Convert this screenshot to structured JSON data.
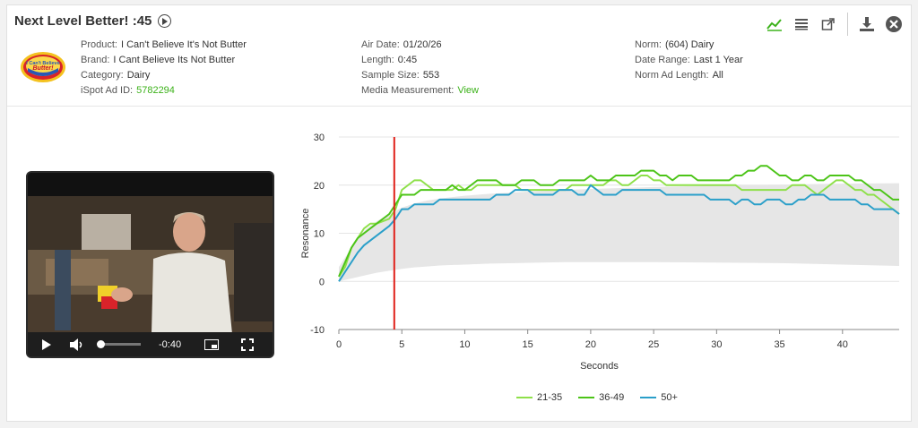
{
  "header": {
    "title": "Next Level Better! :45",
    "col1": [
      {
        "label": "Product:",
        "value": "I Can't Believe It's Not Butter"
      },
      {
        "label": "Brand:",
        "value": "I Cant Believe Its Not Butter"
      },
      {
        "label": "Category:",
        "value": "Dairy"
      },
      {
        "label": "iSpot Ad ID:",
        "value": "5782294"
      }
    ],
    "col2": [
      {
        "label": "Air Date:",
        "value": "01/20/26"
      },
      {
        "label": "Length:",
        "value": "0:45"
      },
      {
        "label": "Sample Size:",
        "value": "553"
      },
      {
        "label": "Media Measurement:",
        "value": "View"
      }
    ],
    "col3": [
      {
        "label": "Norm:",
        "value": "(604) Dairy"
      },
      {
        "label": "Date Range:",
        "value": "Last 1 Year"
      },
      {
        "label": "Norm Ad Length:",
        "value": "All"
      }
    ],
    "logo_text": "I Can't Believe It's Not Butter!"
  },
  "toolbar": {
    "icons": [
      "line-chart-icon",
      "list-icon",
      "external-link-icon",
      "download-icon",
      "close-circle-icon"
    ],
    "accent": "#3cb21a"
  },
  "video": {
    "time": "-0:40",
    "progress": 0.03
  },
  "chart_data": {
    "type": "line",
    "xlabel": "Seconds",
    "ylabel": "Resonance",
    "xlim": [
      0,
      44.5
    ],
    "ylim": [
      -10,
      30
    ],
    "xticks": [
      0,
      5,
      10,
      15,
      20,
      25,
      30,
      35,
      40
    ],
    "yticks": [
      -10,
      0,
      10,
      20,
      30
    ],
    "marker_x": 4.4,
    "marker_color": "#e0201a",
    "grid": true,
    "legend": "bottom",
    "norm_band": {
      "x": [
        0,
        1,
        2,
        3,
        4,
        5,
        6,
        7,
        8,
        10,
        12,
        14,
        16,
        18,
        20,
        25,
        30,
        35,
        40,
        44.5
      ],
      "upper": [
        3,
        7,
        10.5,
        12.5,
        14,
        15.3,
        16.2,
        16.8,
        17.2,
        17.8,
        18.2,
        18.5,
        18.8,
        19,
        19.2,
        19.6,
        19.9,
        20.1,
        20.3,
        20.4
      ],
      "lower": [
        0,
        0.6,
        1.2,
        1.8,
        2.2,
        2.6,
        2.9,
        3.1,
        3.3,
        3.5,
        3.7,
        3.8,
        3.9,
        4,
        4,
        4,
        3.9,
        3.8,
        3.5,
        3.2
      ]
    },
    "series": [
      {
        "name": "21-35",
        "color": "#8ee04a",
        "x": [
          0,
          0.5,
          1,
          1.5,
          2,
          2.5,
          3,
          3.5,
          4,
          4.5,
          5,
          5.5,
          6,
          6.5,
          7,
          7.5,
          8,
          8.5,
          9,
          9.5,
          10,
          10.5,
          11,
          11.5,
          12,
          12.5,
          13,
          13.5,
          14,
          14.5,
          15,
          15.5,
          16,
          16.5,
          17,
          17.5,
          18,
          18.5,
          19,
          19.5,
          20,
          20.5,
          21,
          21.5,
          22,
          22.5,
          23,
          23.5,
          24,
          24.5,
          25,
          25.5,
          26,
          26.5,
          27,
          27.5,
          28,
          28.5,
          29,
          29.5,
          30,
          30.5,
          31,
          31.5,
          32,
          32.5,
          33,
          33.5,
          34,
          34.5,
          35,
          35.5,
          36,
          36.5,
          37,
          37.5,
          38,
          38.5,
          39,
          39.5,
          40,
          40.5,
          41,
          41.5,
          42,
          42.5,
          43,
          43.5,
          44,
          44.5
        ],
        "y": [
          1,
          3,
          7,
          9,
          11,
          12,
          12,
          12.5,
          13,
          15,
          19,
          20,
          21,
          21,
          20,
          19,
          19,
          19,
          19,
          20,
          19,
          19,
          20,
          20,
          20,
          20,
          20,
          20,
          20,
          19,
          19,
          19,
          19,
          19,
          19,
          19,
          19,
          20,
          20,
          20,
          20,
          20,
          20,
          21,
          21,
          20,
          20,
          21,
          22,
          22,
          21,
          21,
          20,
          20,
          20,
          20,
          20,
          20,
          20,
          20,
          20,
          20,
          20,
          20,
          19,
          19,
          19,
          19,
          19,
          19,
          19,
          19,
          20,
          20,
          20,
          19,
          18,
          19,
          20,
          21,
          21,
          20,
          19,
          19,
          18,
          18,
          17,
          16,
          15,
          14
        ]
      },
      {
        "name": "36-49",
        "color": "#4cc418",
        "x": [
          0,
          0.5,
          1,
          1.5,
          2,
          2.5,
          3,
          3.5,
          4,
          4.5,
          5,
          5.5,
          6,
          6.5,
          7,
          7.5,
          8,
          8.5,
          9,
          9.5,
          10,
          10.5,
          11,
          11.5,
          12,
          12.5,
          13,
          13.5,
          14,
          14.5,
          15,
          15.5,
          16,
          16.5,
          17,
          17.5,
          18,
          18.5,
          19,
          19.5,
          20,
          20.5,
          21,
          21.5,
          22,
          22.5,
          23,
          23.5,
          24,
          24.5,
          25,
          25.5,
          26,
          26.5,
          27,
          27.5,
          28,
          28.5,
          29,
          29.5,
          30,
          30.5,
          31,
          31.5,
          32,
          32.5,
          33,
          33.5,
          34,
          34.5,
          35,
          35.5,
          36,
          36.5,
          37,
          37.5,
          38,
          38.5,
          39,
          39.5,
          40,
          40.5,
          41,
          41.5,
          42,
          42.5,
          43,
          43.5,
          44,
          44.5
        ],
        "y": [
          1,
          4,
          7,
          9,
          10,
          11,
          12,
          13,
          14,
          16,
          18,
          18,
          18,
          19,
          19,
          19,
          19,
          19,
          20,
          19,
          19,
          20,
          21,
          21,
          21,
          21,
          20,
          20,
          20,
          21,
          21,
          21,
          20,
          20,
          20,
          21,
          21,
          21,
          21,
          21,
          22,
          21,
          21,
          21,
          22,
          22,
          22,
          22,
          23,
          23,
          23,
          22,
          22,
          21,
          22,
          22,
          22,
          21,
          21,
          21,
          21,
          21,
          21,
          22,
          22,
          23,
          23,
          24,
          24,
          23,
          22,
          22,
          21,
          21,
          22,
          22,
          21,
          21,
          22,
          22,
          22,
          22,
          21,
          21,
          20,
          19,
          19,
          18,
          17,
          17
        ]
      },
      {
        "name": "50+",
        "color": "#2a9fc9",
        "x": [
          0,
          0.5,
          1,
          1.5,
          2,
          2.5,
          3,
          3.5,
          4,
          4.5,
          5,
          5.5,
          6,
          6.5,
          7,
          7.5,
          8,
          8.5,
          9,
          9.5,
          10,
          10.5,
          11,
          11.5,
          12,
          12.5,
          13,
          13.5,
          14,
          14.5,
          15,
          15.5,
          16,
          16.5,
          17,
          17.5,
          18,
          18.5,
          19,
          19.5,
          20,
          20.5,
          21,
          21.5,
          22,
          22.5,
          23,
          23.5,
          24,
          24.5,
          25,
          25.5,
          26,
          26.5,
          27,
          27.5,
          28,
          28.5,
          29,
          29.5,
          30,
          30.5,
          31,
          31.5,
          32,
          32.5,
          33,
          33.5,
          34,
          34.5,
          35,
          35.5,
          36,
          36.5,
          37,
          37.5,
          38,
          38.5,
          39,
          39.5,
          40,
          40.5,
          41,
          41.5,
          42,
          42.5,
          43,
          43.5,
          44,
          44.5
        ],
        "y": [
          0,
          2,
          4,
          6,
          7.5,
          8.5,
          9.5,
          10.5,
          11.5,
          13,
          15,
          15,
          16,
          16,
          16,
          16,
          17,
          17,
          17,
          17,
          17,
          17,
          17,
          17,
          17,
          18,
          18,
          18,
          19,
          19,
          19,
          18,
          18,
          18,
          18,
          19,
          19,
          19,
          18,
          18,
          20,
          19,
          18,
          18,
          18,
          19,
          19,
          19,
          19,
          19,
          19,
          19,
          18,
          18,
          18,
          18,
          18,
          18,
          18,
          17,
          17,
          17,
          17,
          16,
          17,
          17,
          16,
          16,
          17,
          17,
          17,
          16,
          16,
          17,
          17,
          18,
          18,
          18,
          17,
          17,
          17,
          17,
          17,
          16,
          16,
          15,
          15,
          15,
          15,
          14
        ]
      }
    ]
  }
}
